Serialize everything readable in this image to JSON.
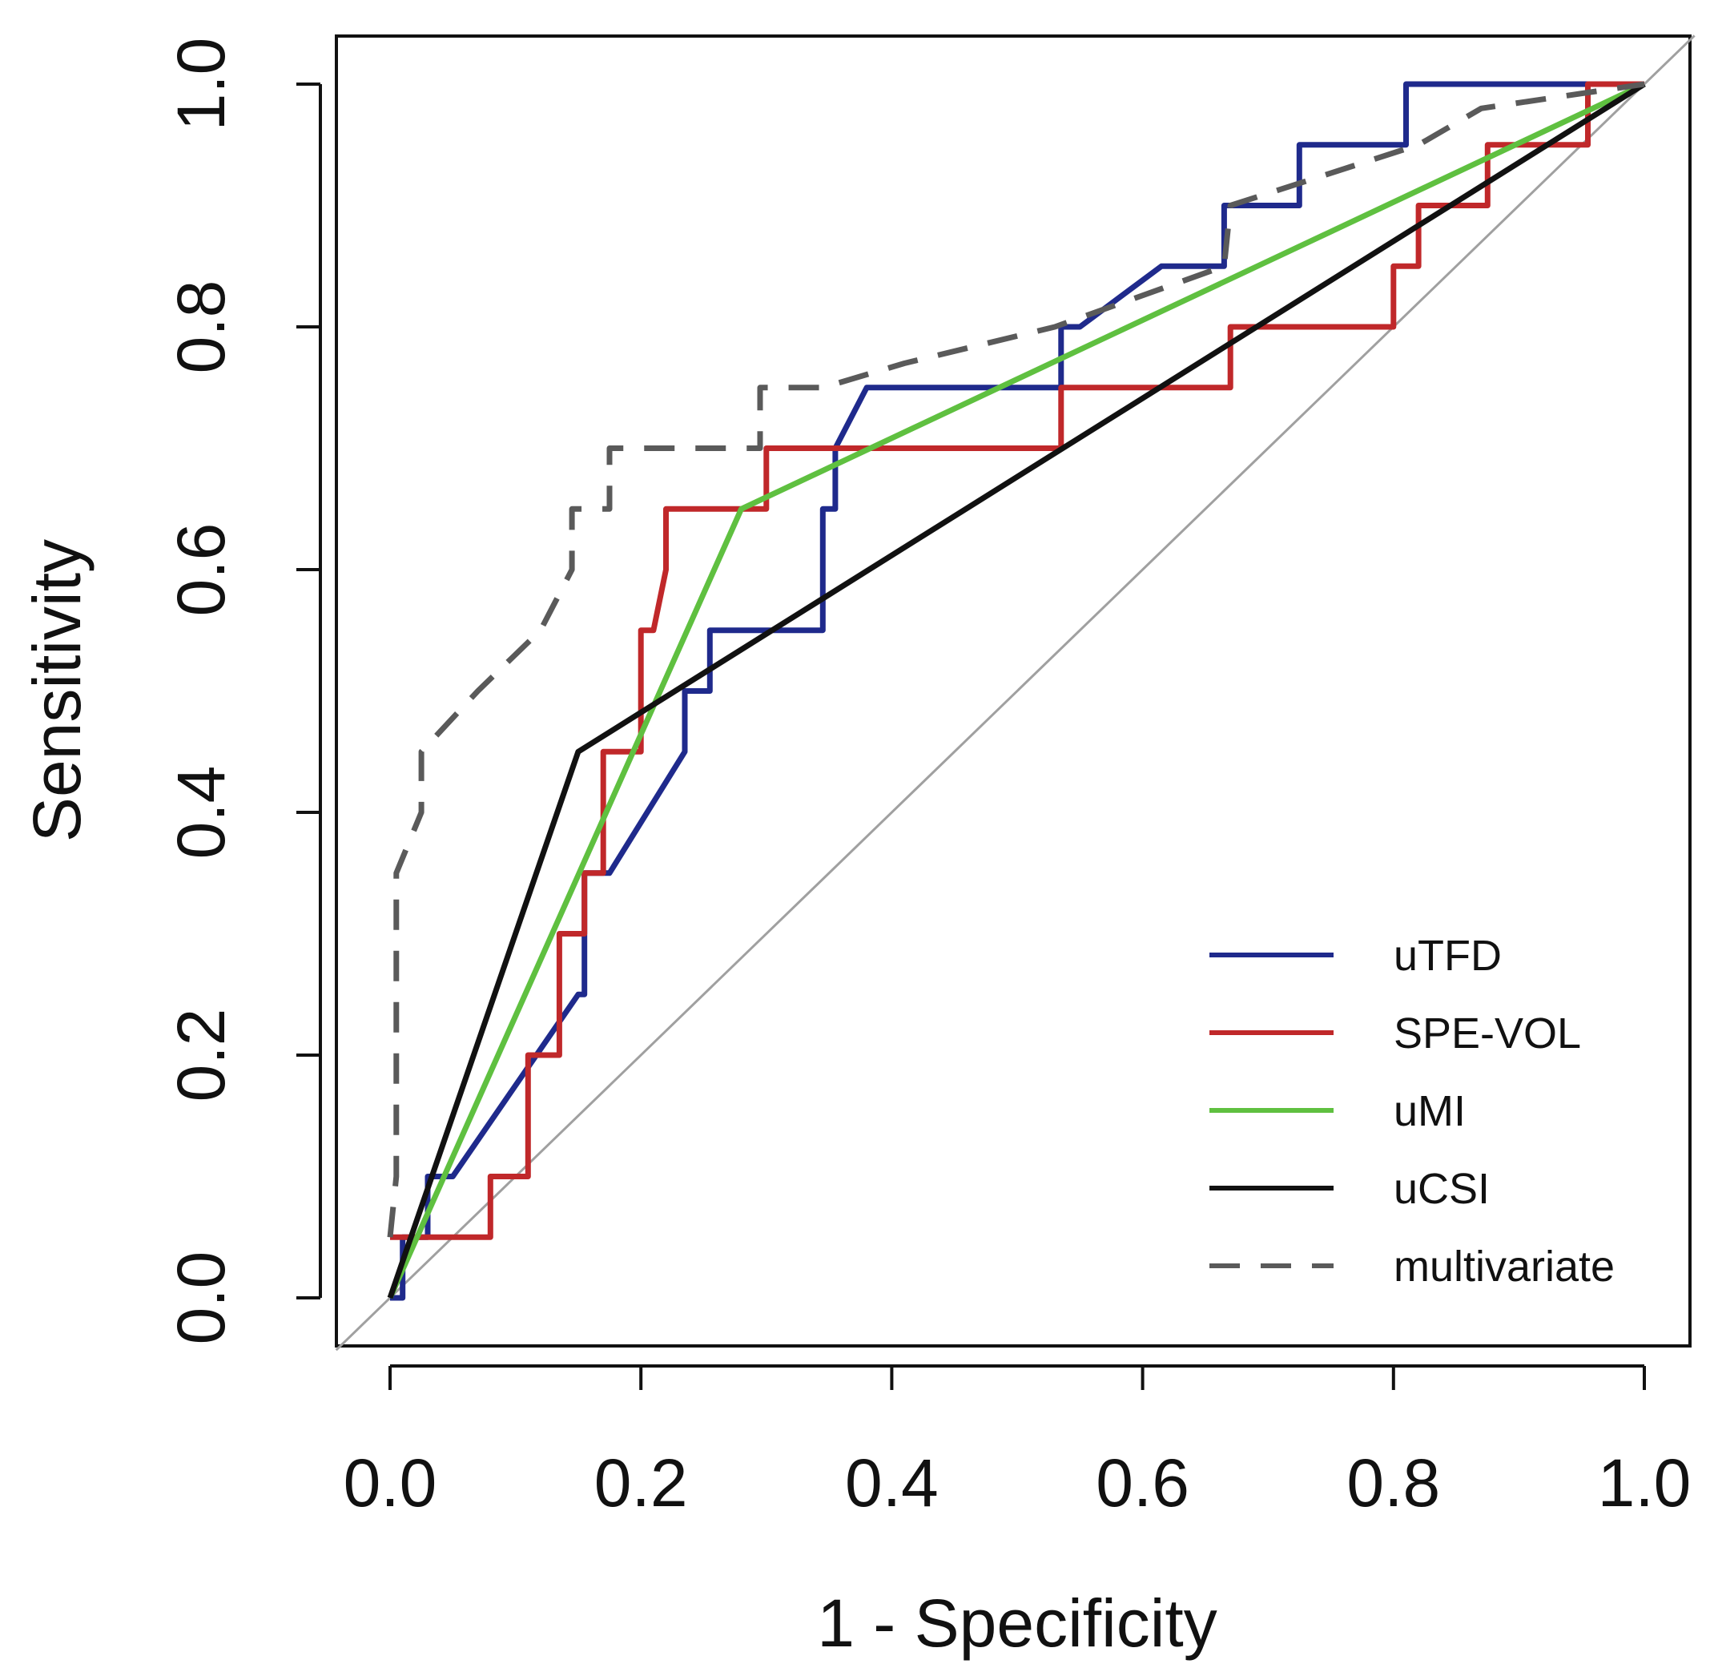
{
  "chart_data": {
    "type": "line",
    "title": "",
    "xlabel": "1 - Specificity",
    "ylabel": "Sensitivity",
    "xlim": [
      0,
      1
    ],
    "ylim": [
      0,
      1
    ],
    "xticks": [
      "0.0",
      "0.2",
      "0.4",
      "0.6",
      "0.8",
      "1.0"
    ],
    "yticks": [
      "0.0",
      "0.2",
      "0.4",
      "0.6",
      "0.8",
      "1.0"
    ],
    "legend_position": "bottom-right",
    "reference_line": {
      "name": "chance diagonal",
      "color": "#a0a0a0",
      "points": [
        [
          0,
          0
        ],
        [
          1,
          1
        ]
      ]
    },
    "series": [
      {
        "name": "uTFD",
        "color": "#1f2a8c",
        "dash": "solid",
        "points": [
          [
            0,
            0
          ],
          [
            0.01,
            0
          ],
          [
            0.01,
            0.05
          ],
          [
            0.03,
            0.05
          ],
          [
            0.03,
            0.1
          ],
          [
            0.05,
            0.1
          ],
          [
            0.15,
            0.25
          ],
          [
            0.155,
            0.25
          ],
          [
            0.155,
            0.35
          ],
          [
            0.175,
            0.35
          ],
          [
            0.235,
            0.45
          ],
          [
            0.235,
            0.5
          ],
          [
            0.255,
            0.5
          ],
          [
            0.255,
            0.55
          ],
          [
            0.345,
            0.55
          ],
          [
            0.345,
            0.65
          ],
          [
            0.355,
            0.65
          ],
          [
            0.355,
            0.7
          ],
          [
            0.38,
            0.75
          ],
          [
            0.535,
            0.75
          ],
          [
            0.535,
            0.8
          ],
          [
            0.55,
            0.8
          ],
          [
            0.615,
            0.85
          ],
          [
            0.665,
            0.85
          ],
          [
            0.665,
            0.9
          ],
          [
            0.725,
            0.9
          ],
          [
            0.725,
            0.95
          ],
          [
            0.81,
            0.95
          ],
          [
            0.81,
            1.0
          ],
          [
            1.0,
            1.0
          ]
        ]
      },
      {
        "name": "SPE-VOL",
        "color": "#c0282a",
        "dash": "solid",
        "points": [
          [
            0,
            0.05
          ],
          [
            0.08,
            0.05
          ],
          [
            0.08,
            0.1
          ],
          [
            0.11,
            0.1
          ],
          [
            0.11,
            0.2
          ],
          [
            0.135,
            0.2
          ],
          [
            0.135,
            0.3
          ],
          [
            0.155,
            0.3
          ],
          [
            0.155,
            0.35
          ],
          [
            0.17,
            0.35
          ],
          [
            0.17,
            0.45
          ],
          [
            0.2,
            0.45
          ],
          [
            0.2,
            0.55
          ],
          [
            0.21,
            0.55
          ],
          [
            0.22,
            0.6
          ],
          [
            0.22,
            0.65
          ],
          [
            0.3,
            0.65
          ],
          [
            0.3,
            0.7
          ],
          [
            0.535,
            0.7
          ],
          [
            0.535,
            0.75
          ],
          [
            0.67,
            0.75
          ],
          [
            0.67,
            0.8
          ],
          [
            0.8,
            0.8
          ],
          [
            0.8,
            0.85
          ],
          [
            0.82,
            0.85
          ],
          [
            0.82,
            0.9
          ],
          [
            0.875,
            0.9
          ],
          [
            0.875,
            0.95
          ],
          [
            0.955,
            0.95
          ],
          [
            0.955,
            1.0
          ],
          [
            1.0,
            1.0
          ]
        ]
      },
      {
        "name": "uMI",
        "color": "#5fc040",
        "dash": "solid",
        "points": [
          [
            0,
            0
          ],
          [
            0.28,
            0.65
          ],
          [
            1.0,
            1.0
          ]
        ]
      },
      {
        "name": "uCSI",
        "color": "#111111",
        "dash": "solid",
        "points": [
          [
            0,
            0
          ],
          [
            0.15,
            0.45
          ],
          [
            1.0,
            1.0
          ]
        ]
      },
      {
        "name": "multivariate",
        "color": "#5a5a5a",
        "dash": "dashed",
        "points": [
          [
            0,
            0.05
          ],
          [
            0.005,
            0.1
          ],
          [
            0.005,
            0.35
          ],
          [
            0.025,
            0.4
          ],
          [
            0.025,
            0.45
          ],
          [
            0.07,
            0.5
          ],
          [
            0.12,
            0.55
          ],
          [
            0.145,
            0.6
          ],
          [
            0.145,
            0.65
          ],
          [
            0.175,
            0.65
          ],
          [
            0.175,
            0.7
          ],
          [
            0.295,
            0.7
          ],
          [
            0.295,
            0.75
          ],
          [
            0.345,
            0.75
          ],
          [
            0.41,
            0.77
          ],
          [
            0.53,
            0.8
          ],
          [
            0.665,
            0.85
          ],
          [
            0.67,
            0.9
          ],
          [
            0.82,
            0.95
          ],
          [
            0.87,
            0.98
          ],
          [
            1.0,
            1.0
          ]
        ]
      }
    ]
  }
}
